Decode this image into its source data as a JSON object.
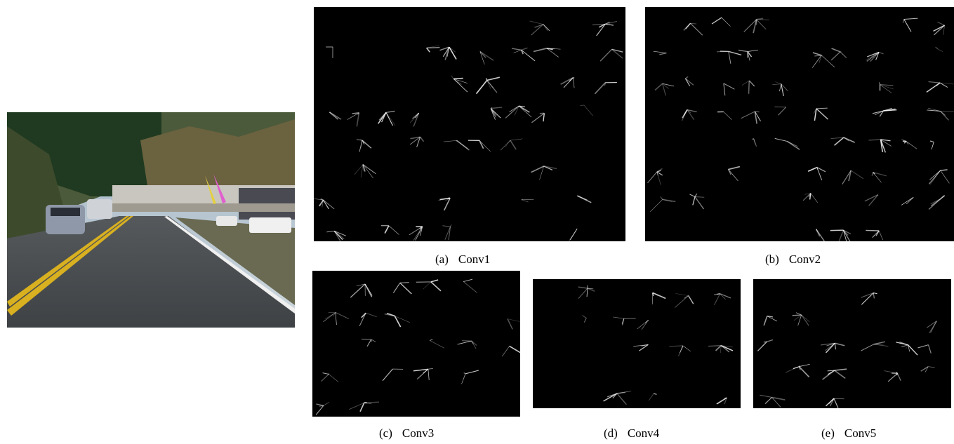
{
  "figure": {
    "input_image": {
      "alt": "road scene with cars"
    },
    "panels": [
      {
        "id": "a",
        "letter": "(a)",
        "name": "Conv1",
        "grid": [
          8,
          10
        ]
      },
      {
        "id": "b",
        "letter": "(b)",
        "name": "Conv2",
        "grid": [
          8,
          10
        ]
      },
      {
        "id": "c",
        "letter": "(c)",
        "name": "Conv3",
        "grid": [
          5,
          6
        ]
      },
      {
        "id": "d",
        "letter": "(d)",
        "name": "Conv4",
        "grid": [
          5,
          6
        ]
      },
      {
        "id": "e",
        "letter": "(e)",
        "name": "Conv5",
        "grid": [
          5,
          6
        ]
      }
    ]
  }
}
